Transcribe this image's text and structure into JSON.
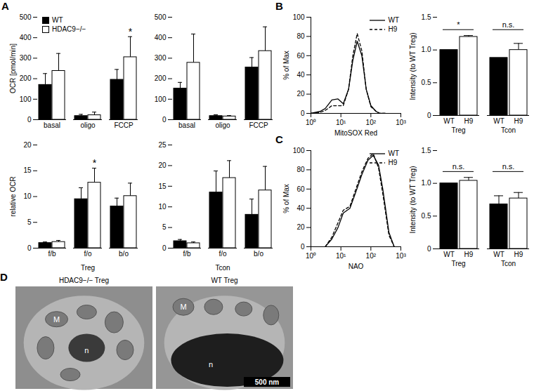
{
  "chart_data": [
    {
      "panel": "A",
      "type": "bar",
      "ylabel": "OCR [pmol/min]",
      "categories": [
        "basal",
        "oligo",
        "FCCP"
      ],
      "ylim": [
        0,
        500
      ],
      "yticks": [
        0,
        100,
        200,
        300,
        400,
        500
      ],
      "legend": "top-left",
      "series": [
        {
          "name": "WT",
          "color": "#000000",
          "values": [
            170,
            18,
            195
          ],
          "errors": [
            55,
            8,
            50
          ],
          "annotations": [
            null,
            null,
            null
          ]
        },
        {
          "name": "HDAC9−/−",
          "color": "#ffffff",
          "values": [
            238,
            22,
            305
          ],
          "errors": [
            85,
            15,
            100
          ],
          "annotations": [
            null,
            null,
            "*"
          ]
        }
      ]
    },
    {
      "type": "bar",
      "categories": [
        "basal",
        "oligo",
        "FCCP"
      ],
      "ylim": [
        0,
        500
      ],
      "yticks": [
        0,
        100,
        200,
        300,
        400,
        500
      ],
      "series": [
        {
          "name": "WT",
          "color": "#000000",
          "values": [
            152,
            18,
            255
          ],
          "errors": [
            30,
            6,
            48
          ],
          "annotations": [
            null,
            null,
            null
          ]
        },
        {
          "name": "HDAC9−/−",
          "color": "#ffffff",
          "values": [
            278,
            16,
            335
          ],
          "errors": [
            140,
            4,
            118
          ],
          "annotations": [
            null,
            null,
            null
          ]
        }
      ]
    },
    {
      "type": "bar",
      "ylabel": "relative OCR",
      "xlabel": "Treg",
      "categories": [
        "f/b",
        "f/o",
        "b/o"
      ],
      "ylim": [
        0,
        20
      ],
      "yticks": [
        0,
        5,
        10,
        15,
        20
      ],
      "series": [
        {
          "name": "WT",
          "color": "#000000",
          "values": [
            1.0,
            9.5,
            8.1
          ],
          "errors": [
            0.2,
            2.2,
            1.6
          ],
          "annotations": [
            null,
            null,
            null
          ]
        },
        {
          "name": "HDAC9−/−",
          "color": "#ffffff",
          "values": [
            1.2,
            12.7,
            10.1
          ],
          "errors": [
            0.3,
            2.8,
            2.5
          ],
          "annotations": [
            null,
            "*",
            null
          ]
        }
      ]
    },
    {
      "type": "bar",
      "xlabel": "Tcon",
      "categories": [
        "f/b",
        "f/o",
        "b/o"
      ],
      "ylim": [
        0,
        25
      ],
      "yticks": [
        0,
        5,
        10,
        15,
        20,
        25
      ],
      "series": [
        {
          "name": "WT",
          "color": "#000000",
          "values": [
            1.7,
            13.5,
            8.1
          ],
          "errors": [
            0.4,
            5.2,
            3.8
          ],
          "annotations": [
            null,
            null,
            null
          ]
        },
        {
          "name": "HDAC9−/−",
          "color": "#ffffff",
          "values": [
            1.2,
            17,
            14
          ],
          "errors": [
            0.3,
            4.2,
            5.8
          ],
          "annotations": [
            null,
            null,
            null
          ]
        }
      ]
    },
    {
      "panel": "B",
      "type": "line",
      "xlabel": "MitoSOX Red",
      "ylabel": "% of Max",
      "log": "x",
      "xlim": [
        1,
        1000
      ],
      "xticks": [
        {
          "value": 1,
          "label": "10⁰"
        },
        {
          "value": 10,
          "label": "10¹"
        },
        {
          "value": 100,
          "label": "10²"
        },
        {
          "value": 1000,
          "label": "10³"
        }
      ],
      "ylim": [
        0,
        100
      ],
      "yticks": [
        0,
        20,
        40,
        60,
        80,
        100
      ],
      "legend": "top-right",
      "x": [
        1,
        2,
        3,
        5,
        8,
        12,
        18,
        25,
        35,
        50,
        70,
        100,
        150,
        200,
        300
      ],
      "series": [
        {
          "name": "WT",
          "color": "#000000",
          "line_style": "solid",
          "values": [
            0,
            2,
            5,
            14,
            15,
            10,
            25,
            55,
            75,
            60,
            25,
            8,
            2,
            0,
            0
          ]
        },
        {
          "name": "H9",
          "color": "#000000",
          "line_style": "dashed",
          "values": [
            0,
            1,
            3,
            8,
            8,
            8,
            25,
            60,
            83,
            65,
            25,
            7,
            2,
            0,
            0
          ]
        }
      ]
    },
    {
      "type": "bar",
      "ylabel": "Intensity (to WT Treg)",
      "categories": [
        "WT",
        "H9",
        "WT",
        "H9"
      ],
      "groups": [
        {
          "name": "Treg",
          "annotation": "*"
        },
        {
          "name": "Tcon",
          "annotation": "n.s."
        }
      ],
      "values": [
        1.0,
        1.2,
        0.88,
        1.0
      ],
      "errors": [
        0,
        0.02,
        0,
        0.1
      ],
      "colors": [
        "#000000",
        "#ffffff",
        "#000000",
        "#ffffff"
      ],
      "ylim": [
        0,
        1.5
      ],
      "yticks": [
        0,
        0.5,
        {
          "value": 1,
          "label": "1.0"
        },
        1.5
      ]
    },
    {
      "panel": "C",
      "type": "line",
      "xlabel": "NAO",
      "ylabel": "% of Max",
      "log": "x",
      "xlim": [
        1,
        1000
      ],
      "xticks": [
        {
          "value": 1,
          "label": "10⁰"
        },
        {
          "value": 10,
          "label": "10¹"
        },
        {
          "value": 100,
          "label": "10²"
        },
        {
          "value": 1000,
          "label": "10³"
        }
      ],
      "ylim": [
        0,
        100
      ],
      "yticks": [
        0,
        20,
        40,
        60,
        80,
        100
      ],
      "legend": "top-right",
      "x": [
        3,
        5,
        8,
        12,
        20,
        30,
        50,
        80,
        120,
        180,
        250,
        400,
        600
      ],
      "series": [
        {
          "name": "WT",
          "color": "#000000",
          "line_style": "solid",
          "values": [
            0,
            8,
            20,
            35,
            40,
            55,
            75,
            90,
            95,
            85,
            60,
            15,
            0
          ]
        },
        {
          "name": "H9",
          "color": "#000000",
          "line_style": "dashed",
          "values": [
            0,
            10,
            25,
            38,
            42,
            58,
            78,
            92,
            97,
            82,
            55,
            12,
            0
          ]
        }
      ]
    },
    {
      "type": "bar",
      "ylabel": "Intensity (to WT Treg)",
      "categories": [
        "WT",
        "H9",
        "WT",
        "H9"
      ],
      "groups": [
        {
          "name": "Treg",
          "annotation": "n.s."
        },
        {
          "name": "Tcon",
          "annotation": "n.s."
        }
      ],
      "values": [
        1.0,
        1.04,
        0.68,
        0.77
      ],
      "errors": [
        0,
        0.05,
        0.13,
        0.09
      ],
      "colors": [
        "#000000",
        "#ffffff",
        "#000000",
        "#ffffff"
      ],
      "ylim": [
        0,
        1.5
      ],
      "yticks": [
        0,
        0.5,
        {
          "value": 1,
          "label": "1.0"
        },
        1.5
      ]
    }
  ],
  "panel_D": {
    "panel": "D",
    "images": [
      {
        "title": "HDAC9−/− Treg",
        "labels": [
          "M",
          "n"
        ]
      },
      {
        "title": "WT Treg",
        "labels": [
          "M",
          "n"
        ]
      }
    ],
    "scale_bar": "500 nm"
  }
}
